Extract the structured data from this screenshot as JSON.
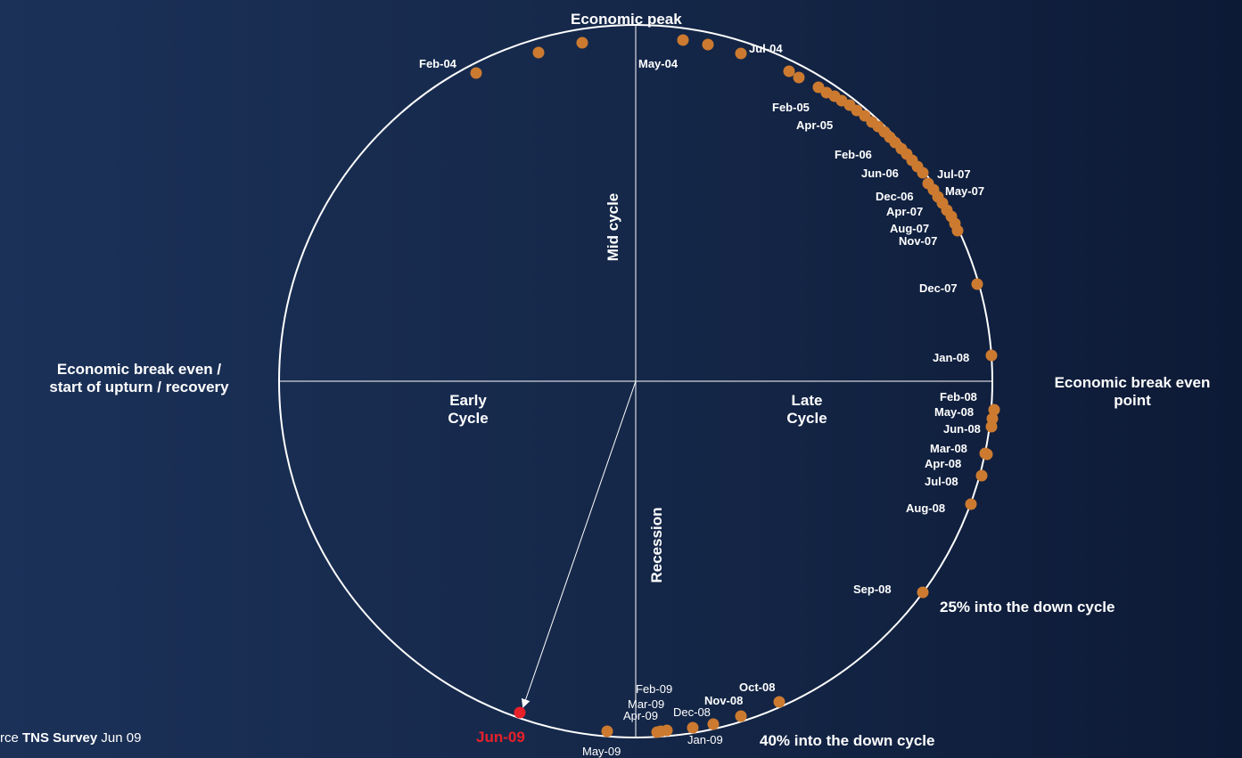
{
  "title": "Economic peak",
  "labels": {
    "mid_cycle": "Mid cycle",
    "recession": "Recession",
    "early_cycle": [
      "Early",
      "Cycle"
    ],
    "late_cycle": [
      "Late",
      "Cycle"
    ],
    "left_point": [
      "Economic break even /",
      "start of upturn / recovery"
    ],
    "right_point": [
      "Economic break even",
      "point"
    ],
    "down25": "25% into the down cycle",
    "down40": "40% into the down cycle",
    "current": "Jun-09"
  },
  "source": {
    "prefix": "rce",
    "bold": "TNS Survey",
    "suffix": "Jun 09"
  },
  "colors": {
    "point": "#cc7a30",
    "current": "#e8202a",
    "line": "#ffffff"
  },
  "point_labels": [
    "Feb-04",
    "May-04",
    "Jul-04",
    "Feb-05",
    "Apr-05",
    "Feb-06",
    "Jun-06",
    "Jul-07",
    "May-07",
    "Dec-06",
    "Apr-07",
    "Aug-07",
    "Nov-07",
    "Dec-07",
    "Jan-08",
    "Feb-08",
    "May-08",
    "Jun-08",
    "Mar-08",
    "Apr-08",
    "Jul-08",
    "Aug-08",
    "Sep-08",
    "Oct-08",
    "Nov-08",
    "Dec-08",
    "Jan-09",
    "Feb-09",
    "Mar-09",
    "Apr-09",
    "May-09"
  ],
  "chart_data": {
    "type": "scatter",
    "description_free": true,
    "series": [
      {
        "values": []
      }
    ]
  }
}
